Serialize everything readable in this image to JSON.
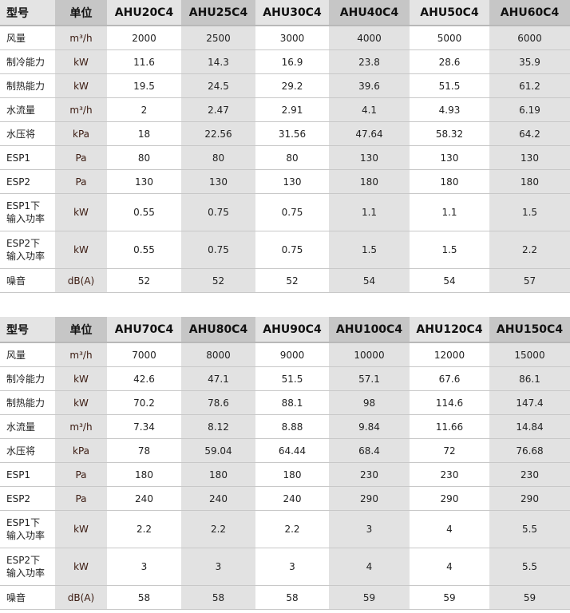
{
  "row_labels": [
    "型号",
    "风量",
    "制冷能力",
    "制热能力",
    "水流量",
    "水压将",
    "ESP1",
    "ESP2",
    "ESP1下\n输入功率",
    "ESP2下\n输入功率",
    "噪音"
  ],
  "unit_header": "单位",
  "units": [
    "m³/h",
    "kW",
    "kW",
    "m³/h",
    "kPa",
    "Pa",
    "Pa",
    "kW",
    "kW",
    "dB(A)"
  ],
  "tables": [
    {
      "models": [
        "AHU20C4",
        "AHU25C4",
        "AHU30C4",
        "AHU40C4",
        "AHU50C4",
        "AHU60C4"
      ],
      "rows": [
        [
          "2000",
          "2500",
          "3000",
          "4000",
          "5000",
          "6000"
        ],
        [
          "11.6",
          "14.3",
          "16.9",
          "23.8",
          "28.6",
          "35.9"
        ],
        [
          "19.5",
          "24.5",
          "29.2",
          "39.6",
          "51.5",
          "61.2"
        ],
        [
          "2",
          "2.47",
          "2.91",
          "4.1",
          "4.93",
          "6.19"
        ],
        [
          "18",
          "22.56",
          "31.56",
          "47.64",
          "58.32",
          "64.2"
        ],
        [
          "80",
          "80",
          "80",
          "130",
          "130",
          "130"
        ],
        [
          "130",
          "130",
          "130",
          "180",
          "180",
          "180"
        ],
        [
          "0.55",
          "0.75",
          "0.75",
          "1.1",
          "1.1",
          "1.5"
        ],
        [
          "0.55",
          "0.75",
          "0.75",
          "1.5",
          "1.5",
          "2.2"
        ],
        [
          "52",
          "52",
          "52",
          "54",
          "54",
          "57"
        ]
      ]
    },
    {
      "models": [
        "AHU70C4",
        "AHU80C4",
        "AHU90C4",
        "AHU100C4",
        "AHU120C4",
        "AHU150C4"
      ],
      "rows": [
        [
          "7000",
          "8000",
          "9000",
          "10000",
          "12000",
          "15000"
        ],
        [
          "42.6",
          "47.1",
          "51.5",
          "57.1",
          "67.6",
          "86.1"
        ],
        [
          "70.2",
          "78.6",
          "88.1",
          "98",
          "114.6",
          "147.4"
        ],
        [
          "7.34",
          "8.12",
          "8.88",
          "9.84",
          "11.66",
          "14.84"
        ],
        [
          "78",
          "59.04",
          "64.44",
          "68.4",
          "72",
          "76.68"
        ],
        [
          "180",
          "180",
          "180",
          "230",
          "230",
          "230"
        ],
        [
          "240",
          "240",
          "240",
          "290",
          "290",
          "290"
        ],
        [
          "2.2",
          "2.2",
          "2.2",
          "3",
          "4",
          "5.5"
        ],
        [
          "3",
          "3",
          "3",
          "4",
          "4",
          "5.5"
        ],
        [
          "58",
          "58",
          "58",
          "59",
          "59",
          "59"
        ]
      ]
    }
  ]
}
